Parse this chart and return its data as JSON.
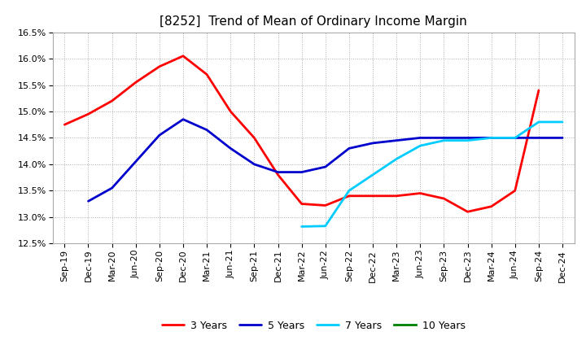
{
  "title": "[8252]  Trend of Mean of Ordinary Income Margin",
  "x_labels": [
    "Sep-19",
    "Dec-19",
    "Mar-20",
    "Jun-20",
    "Sep-20",
    "Dec-20",
    "Mar-21",
    "Jun-21",
    "Sep-21",
    "Dec-21",
    "Mar-22",
    "Jun-22",
    "Sep-22",
    "Dec-22",
    "Mar-23",
    "Jun-23",
    "Sep-23",
    "Dec-23",
    "Mar-24",
    "Jun-24",
    "Sep-24",
    "Dec-24"
  ],
  "y_min": 12.5,
  "y_max": 16.5,
  "y_ticks": [
    12.5,
    13.0,
    13.5,
    14.0,
    14.5,
    15.0,
    15.5,
    16.0,
    16.5
  ],
  "series": {
    "3 Years": {
      "color": "#ff0000",
      "data_x": [
        "Sep-19",
        "Dec-19",
        "Mar-20",
        "Jun-20",
        "Sep-20",
        "Dec-20",
        "Mar-21",
        "Jun-21",
        "Sep-21",
        "Dec-21",
        "Mar-22",
        "Jun-22",
        "Sep-22",
        "Dec-22",
        "Mar-23",
        "Jun-23",
        "Sep-23",
        "Dec-23",
        "Mar-24",
        "Jun-24",
        "Sep-24"
      ],
      "data_y": [
        14.75,
        14.95,
        15.2,
        15.55,
        15.85,
        16.05,
        15.7,
        15.0,
        14.5,
        13.8,
        13.25,
        13.22,
        13.4,
        13.4,
        13.4,
        13.45,
        13.35,
        13.1,
        13.2,
        13.5,
        15.4
      ]
    },
    "5 Years": {
      "color": "#0000cc",
      "data_x": [
        "Dec-19",
        "Mar-20",
        "Jun-20",
        "Sep-20",
        "Dec-20",
        "Mar-21",
        "Jun-21",
        "Sep-21",
        "Dec-21",
        "Mar-22",
        "Jun-22",
        "Sep-22",
        "Dec-22",
        "Mar-23",
        "Jun-23",
        "Sep-23",
        "Dec-23",
        "Mar-24",
        "Jun-24",
        "Sep-24",
        "Dec-24"
      ],
      "data_y": [
        13.3,
        13.55,
        14.05,
        14.55,
        14.85,
        14.65,
        14.3,
        14.0,
        13.85,
        13.85,
        13.95,
        14.3,
        14.4,
        14.45,
        14.5,
        14.5,
        14.5,
        14.5,
        14.5,
        14.5,
        14.5
      ]
    },
    "7 Years": {
      "color": "#00ccff",
      "data_x": [
        "Mar-22",
        "Jun-22",
        "Sep-22",
        "Dec-22",
        "Mar-23",
        "Jun-23",
        "Sep-23",
        "Dec-23",
        "Mar-24",
        "Jun-24",
        "Sep-24",
        "Dec-24"
      ],
      "data_y": [
        12.82,
        12.83,
        13.5,
        13.8,
        14.1,
        14.35,
        14.45,
        14.45,
        14.5,
        14.5,
        14.8,
        14.8
      ]
    },
    "10 Years": {
      "color": "#008000",
      "data_x": [],
      "data_y": []
    }
  },
  "background_color": "#ffffff",
  "plot_bg_color": "#ffffff",
  "grid_color": "#999999",
  "title_fontsize": 11,
  "tick_fontsize": 8,
  "legend_fontsize": 9,
  "line_width": 2.0
}
